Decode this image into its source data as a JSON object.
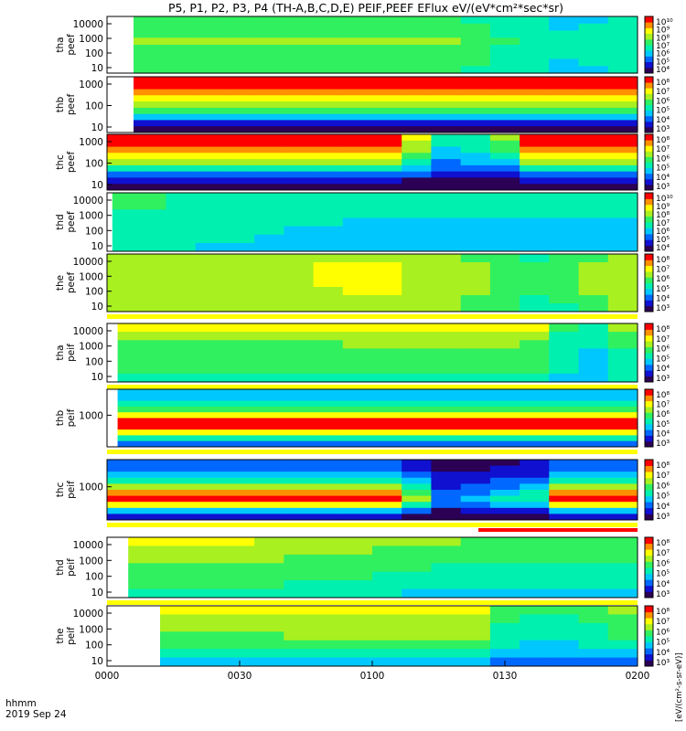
{
  "chart_data": {
    "type": "heatmap",
    "title": "P5, P1, P2, P3, P4 (TH-A,B,C,D,E) PEIF,PEEF EFlux eV/(eV*cm²*sec*sr)",
    "x_axis": {
      "ticks": [
        "0000",
        "0030",
        "0100",
        "0130",
        "0200"
      ],
      "range_minutes": [
        0,
        120
      ],
      "corner_label": "hhmm",
      "date_label": "2019 Sep 24"
    },
    "colorbar_unit": "[eV/(cm²-s-sr-eV)]",
    "columns": 18,
    "colormap": [
      "#2b0055",
      "#1010d0",
      "#0068ff",
      "#00c8ff",
      "#00f0b0",
      "#30f060",
      "#a8f020",
      "#ffff00",
      "#ff9000",
      "#ff0000"
    ],
    "panels": [
      {
        "probe": "tha",
        "product": "peef",
        "ylabel_top": "tha",
        "ylabel_bottom": "peef",
        "yticks": [
          "10000",
          "1000",
          "100",
          "10"
        ],
        "cb_ticks": [
          "10^10",
          "10^9",
          "10^8",
          "10^7",
          "10^6",
          "10^5",
          "10^4"
        ],
        "gap_fraction": 0.05,
        "bottom_bar": "none",
        "z_profile": [
          0.52,
          0.55,
          0.58,
          0.6,
          0.58,
          0.56,
          0.55,
          0.52
        ],
        "time_scale": [
          1,
          1,
          1,
          1,
          1,
          1,
          1,
          1,
          1,
          1,
          1,
          1,
          0.95,
          0.85,
          0.78,
          0.72,
          0.74,
          0.8
        ]
      },
      {
        "probe": "thb",
        "product": "peef",
        "ylabel_top": "thb",
        "ylabel_bottom": "peef",
        "yticks": [
          "1000",
          "100",
          "10"
        ],
        "cb_ticks": [
          "10^8",
          "10^7",
          "10^6",
          "10^5",
          "10^4",
          "10^3"
        ],
        "gap_fraction": 0.05,
        "bottom_bar": "none",
        "z_profile": [
          0.98,
          0.94,
          0.88,
          0.78,
          0.66,
          0.5,
          0.32,
          0.16,
          0.08
        ],
        "time_scale": [
          1,
          1,
          1,
          1,
          1,
          1,
          1,
          1,
          1,
          1,
          1,
          1,
          1,
          1,
          1,
          1,
          1,
          1
        ]
      },
      {
        "probe": "thc",
        "product": "peef",
        "ylabel_top": "thc",
        "ylabel_bottom": "peef",
        "yticks": [
          "1000",
          "100",
          "10"
        ],
        "cb_ticks": [
          "10^8",
          "10^7",
          "10^6",
          "10^5",
          "10^4",
          "10^3"
        ],
        "gap_fraction": 0,
        "bottom_bar": "none",
        "z_profile": [
          0.98,
          0.94,
          0.88,
          0.76,
          0.6,
          0.45,
          0.28,
          0.12,
          0.03
        ],
        "time_scale": [
          1,
          1,
          1,
          1,
          1,
          1,
          1,
          1,
          1,
          1,
          0.72,
          0.45,
          0.5,
          0.62,
          1,
          1,
          1,
          1
        ]
      },
      {
        "probe": "thd",
        "product": "peef",
        "ylabel_top": "thd",
        "ylabel_bottom": "peef",
        "yticks": [
          "10000",
          "1000",
          "100",
          "10"
        ],
        "cb_ticks": [
          "10^10",
          "10^9",
          "10^8",
          "10^7",
          "10^6",
          "10^5",
          "10^4"
        ],
        "gap_fraction": 0.01,
        "bottom_bar": "none",
        "z_profile": [
          0.5,
          0.5,
          0.48,
          0.46,
          0.45,
          0.44,
          0.42
        ],
        "time_scale": [
          1,
          1,
          0.98,
          0.95,
          0.92,
          0.9,
          0.88,
          0.88,
          0.86,
          0.85,
          0.85,
          0.84,
          0.84,
          0.84,
          0.84,
          0.84,
          0.84,
          0.84
        ]
      },
      {
        "probe": "the",
        "product": "peef",
        "ylabel_top": "the",
        "ylabel_bottom": "peef",
        "yticks": [
          "10000",
          "1000",
          "100",
          "10"
        ],
        "cb_ticks": [
          "10^8",
          "10^7",
          "10^6",
          "10^5",
          "10^4",
          "10^3"
        ],
        "gap_fraction": 0,
        "bottom_bar": "yellow",
        "z_profile": [
          0.62,
          0.65,
          0.66,
          0.66,
          0.64,
          0.62,
          0.6
        ],
        "time_scale": [
          1,
          1,
          1,
          1,
          1,
          1,
          1.05,
          1.08,
          1.1,
          1.1,
          1.05,
          1,
          0.95,
          0.85,
          0.8,
          0.82,
          0.95,
          1
        ]
      },
      {
        "probe": "tha",
        "product": "peif",
        "ylabel_top": "tha",
        "ylabel_bottom": "peif",
        "yticks": [
          "10000",
          "1000",
          "100",
          "10"
        ],
        "cb_ticks": [
          "10^8",
          "10^7",
          "10^6",
          "10^5",
          "10^4",
          "10^3"
        ],
        "gap_fraction": 0.02,
        "bottom_bar": "yellow",
        "z_profile": [
          0.7,
          0.62,
          0.58,
          0.55,
          0.52,
          0.5,
          0.45
        ],
        "time_scale": [
          1,
          1,
          1,
          1,
          1,
          1,
          1,
          1.02,
          1.05,
          1.05,
          1.05,
          1.05,
          1.05,
          1.05,
          1.02,
          0.8,
          0.7,
          0.9
        ]
      },
      {
        "probe": "thb",
        "product": "peif",
        "ylabel_top": "thb",
        "ylabel_bottom": "peif",
        "yticks": [
          "1000"
        ],
        "cb_ticks": [
          "10^8",
          "10^7",
          "10^6",
          "10^5",
          "10^4",
          "10^3"
        ],
        "gap_fraction": 0.02,
        "bottom_bar": "yellow",
        "z_profile": [
          0.34,
          0.36,
          0.4,
          0.55,
          0.7,
          0.92,
          0.98,
          0.75,
          0.4,
          0.25
        ],
        "time_scale": [
          1,
          1,
          1,
          1,
          1,
          1,
          1,
          1,
          1,
          1,
          1,
          1,
          1,
          1,
          1,
          1,
          1,
          1
        ]
      },
      {
        "probe": "thc",
        "product": "peif",
        "ylabel_top": "thc",
        "ylabel_bottom": "peif",
        "yticks": [
          "1000"
        ],
        "cb_ticks": [
          "10^8",
          "10^7",
          "10^6",
          "10^5",
          "10^4",
          "10^3"
        ],
        "gap_fraction": 0,
        "bottom_bar": "yellow-red",
        "z_profile": [
          0.2,
          0.28,
          0.34,
          0.45,
          0.62,
          0.85,
          0.98,
          0.7,
          0.3,
          0.12
        ],
        "time_scale": [
          1,
          1,
          1,
          1,
          1,
          1,
          1,
          1,
          1,
          1,
          0.7,
          0.3,
          0.35,
          0.45,
          0.5,
          1,
          1,
          1
        ]
      },
      {
        "probe": "thd",
        "product": "peif",
        "ylabel_top": "thd",
        "ylabel_bottom": "peif",
        "yticks": [
          "10000",
          "1000",
          "100",
          "10"
        ],
        "cb_ticks": [
          "10^8",
          "10^7",
          "10^6",
          "10^5",
          "10^4",
          "10^3"
        ],
        "gap_fraction": 0.04,
        "bottom_bar": "yellow",
        "z_profile": [
          0.7,
          0.66,
          0.62,
          0.58,
          0.55,
          0.52,
          0.45
        ],
        "time_scale": [
          1,
          1,
          1,
          1,
          1,
          0.98,
          0.96,
          0.95,
          0.92,
          0.9,
          0.88,
          0.86,
          0.85,
          0.84,
          0.83,
          0.82,
          0.82,
          0.82
        ]
      },
      {
        "probe": "the",
        "product": "peif",
        "ylabel_top": "the",
        "ylabel_bottom": "peif",
        "yticks": [
          "10000",
          "1000",
          "100",
          "10"
        ],
        "cb_ticks": [
          "10^8",
          "10^7",
          "10^6",
          "10^5",
          "10^4",
          "10^3"
        ],
        "gap_fraction": 0.1,
        "bottom_bar": "none",
        "z_profile": [
          0.72,
          0.66,
          0.62,
          0.58,
          0.52,
          0.42,
          0.3
        ],
        "time_scale": [
          1,
          1,
          1,
          1,
          1,
          1,
          1.05,
          1.05,
          1.05,
          1.05,
          1.05,
          1.05,
          1.05,
          0.8,
          0.75,
          0.75,
          0.8,
          0.9
        ]
      }
    ]
  }
}
